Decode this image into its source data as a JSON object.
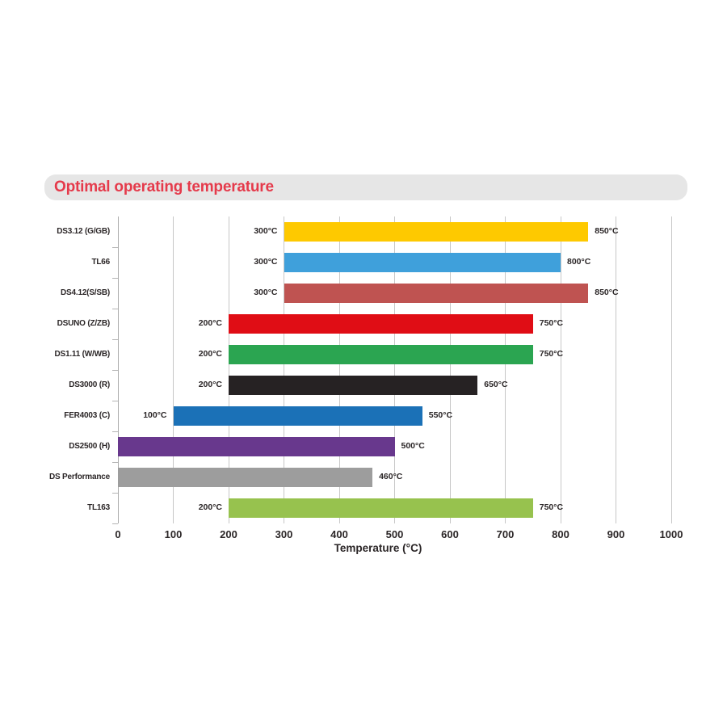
{
  "header": {
    "title": "Optimal operating temperature",
    "title_color": "#E53A4B",
    "pill_bg": "#E6E6E6"
  },
  "chart_data": {
    "type": "bar",
    "orientation": "horizontal",
    "title": "Optimal operating temperature",
    "xlabel": "Temperature (°C)",
    "xlim": [
      0,
      1000
    ],
    "xticks": [
      0,
      100,
      200,
      300,
      400,
      500,
      600,
      700,
      800,
      900,
      1000
    ],
    "xtick_labels": [
      "0",
      "100",
      "200",
      "300",
      "400",
      "500",
      "600",
      "700",
      "800",
      "900",
      "1000"
    ],
    "grid": true,
    "legend": "none",
    "categories": [
      "DS3.12 (G/GB)",
      "TL66",
      "DS4.12(S/SB)",
      "DSUNO (Z/ZB)",
      "DS1.11 (W/WB)",
      "DS3000 (R)",
      "FER4003 (C)",
      "DS2500 (H)",
      "DS Performance",
      "TL163"
    ],
    "rows": [
      {
        "category": "DS3.12 (G/GB)",
        "start": 300,
        "end": 850,
        "start_label": "300°C",
        "end_label": "850°C",
        "color": "#FEC900"
      },
      {
        "category": "TL66",
        "start": 300,
        "end": 800,
        "start_label": "300°C",
        "end_label": "800°C",
        "color": "#3FA0DB"
      },
      {
        "category": "DS4.12(S/SB)",
        "start": 300,
        "end": 850,
        "start_label": "300°C",
        "end_label": "850°C",
        "color": "#BF5351"
      },
      {
        "category": "DSUNO (Z/ZB)",
        "start": 200,
        "end": 750,
        "start_label": "200°C",
        "end_label": "750°C",
        "color": "#E00D15"
      },
      {
        "category": "DS1.11 (W/WB)",
        "start": 200,
        "end": 750,
        "start_label": "200°C",
        "end_label": "750°C",
        "color": "#2BA551"
      },
      {
        "category": "DS3000 (R)",
        "start": 200,
        "end": 650,
        "start_label": "200°C",
        "end_label": "650°C",
        "color": "#262223"
      },
      {
        "category": "FER4003 (C)",
        "start": 100,
        "end": 550,
        "start_label": "100°C",
        "end_label": "550°C",
        "color": "#1B71B7"
      },
      {
        "category": "DS2500 (H)",
        "start": 0,
        "end": 500,
        "start_label": "",
        "end_label": "500°C",
        "color": "#68388D"
      },
      {
        "category": "DS Performance",
        "start": 0,
        "end": 460,
        "start_label": "",
        "end_label": "460°C",
        "color": "#9D9D9D"
      },
      {
        "category": "TL163",
        "start": 200,
        "end": 750,
        "start_label": "200°C",
        "end_label": "750°C",
        "color": "#97C24E"
      }
    ]
  }
}
